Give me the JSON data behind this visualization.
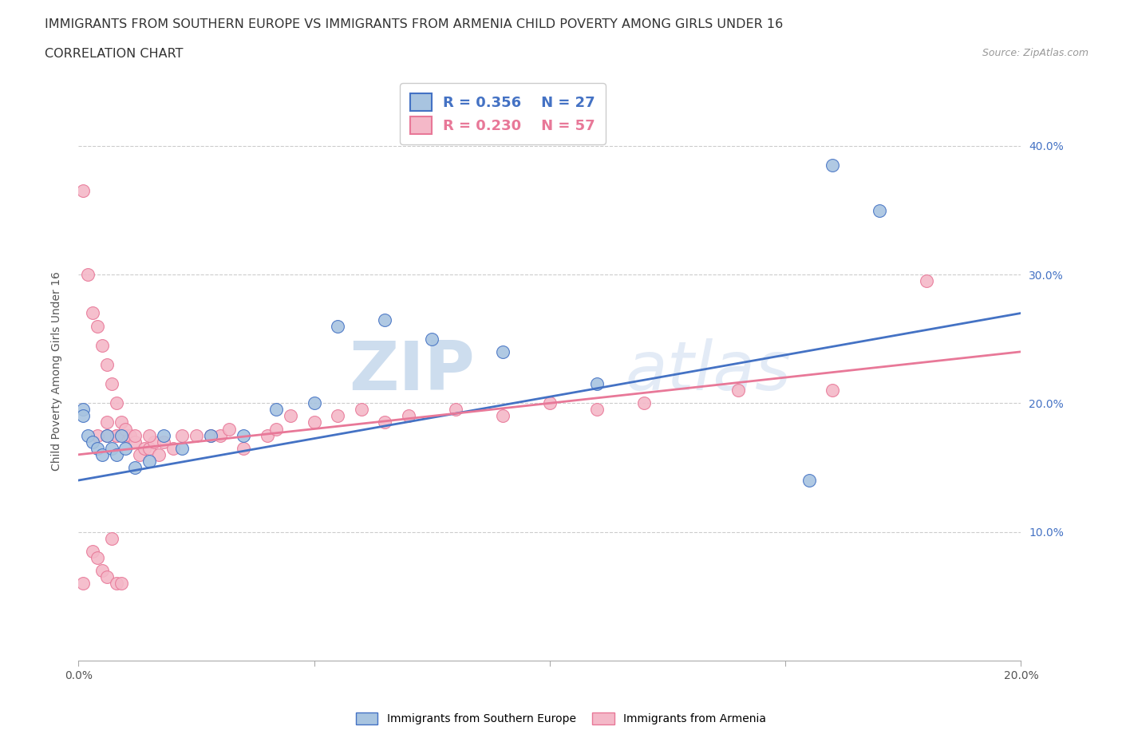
{
  "title_line1": "IMMIGRANTS FROM SOUTHERN EUROPE VS IMMIGRANTS FROM ARMENIA CHILD POVERTY AMONG GIRLS UNDER 16",
  "title_line2": "CORRELATION CHART",
  "source_text": "Source: ZipAtlas.com",
  "ylabel": "Child Poverty Among Girls Under 16",
  "xlim": [
    0.0,
    0.2
  ],
  "ylim": [
    0.0,
    0.45
  ],
  "yticks": [
    0.0,
    0.1,
    0.2,
    0.3,
    0.4
  ],
  "ytick_labels_left": [
    "",
    "",
    "",
    "",
    ""
  ],
  "ytick_labels_right": [
    "",
    "10.0%",
    "20.0%",
    "30.0%",
    "40.0%"
  ],
  "xticks": [
    0.0,
    0.05,
    0.1,
    0.15,
    0.2
  ],
  "xtick_labels": [
    "0.0%",
    "",
    "",
    "",
    "20.0%"
  ],
  "blue_color": "#a8c4e0",
  "blue_line_color": "#4472c4",
  "pink_color": "#f4b8c8",
  "pink_line_color": "#e87898",
  "right_axis_color": "#4472c4",
  "R_blue": "0.356",
  "N_blue": "27",
  "R_pink": "0.230",
  "N_pink": "57",
  "blue_scatter_x": [
    0.001,
    0.001,
    0.002,
    0.003,
    0.004,
    0.005,
    0.006,
    0.007,
    0.008,
    0.009,
    0.01,
    0.012,
    0.015,
    0.018,
    0.022,
    0.028,
    0.035,
    0.042,
    0.05,
    0.055,
    0.065,
    0.075,
    0.09,
    0.11,
    0.155,
    0.16,
    0.17
  ],
  "blue_scatter_y": [
    0.195,
    0.19,
    0.175,
    0.17,
    0.165,
    0.16,
    0.175,
    0.165,
    0.16,
    0.175,
    0.165,
    0.15,
    0.155,
    0.175,
    0.165,
    0.175,
    0.175,
    0.195,
    0.2,
    0.26,
    0.265,
    0.25,
    0.24,
    0.215,
    0.14,
    0.385,
    0.35
  ],
  "pink_scatter_x": [
    0.001,
    0.001,
    0.002,
    0.003,
    0.003,
    0.004,
    0.004,
    0.005,
    0.005,
    0.006,
    0.006,
    0.006,
    0.007,
    0.007,
    0.008,
    0.008,
    0.008,
    0.009,
    0.009,
    0.01,
    0.011,
    0.012,
    0.013,
    0.014,
    0.015,
    0.016,
    0.017,
    0.018,
    0.02,
    0.022,
    0.025,
    0.028,
    0.03,
    0.032,
    0.035,
    0.04,
    0.042,
    0.045,
    0.05,
    0.055,
    0.06,
    0.065,
    0.07,
    0.08,
    0.09,
    0.1,
    0.11,
    0.12,
    0.14,
    0.16,
    0.18,
    0.004,
    0.006,
    0.008,
    0.01,
    0.012,
    0.015
  ],
  "pink_scatter_y": [
    0.365,
    0.06,
    0.3,
    0.27,
    0.085,
    0.26,
    0.08,
    0.245,
    0.07,
    0.23,
    0.175,
    0.065,
    0.215,
    0.095,
    0.2,
    0.175,
    0.06,
    0.185,
    0.06,
    0.175,
    0.175,
    0.17,
    0.16,
    0.165,
    0.165,
    0.17,
    0.16,
    0.17,
    0.165,
    0.175,
    0.175,
    0.175,
    0.175,
    0.18,
    0.165,
    0.175,
    0.18,
    0.19,
    0.185,
    0.19,
    0.195,
    0.185,
    0.19,
    0.195,
    0.19,
    0.2,
    0.195,
    0.2,
    0.21,
    0.21,
    0.295,
    0.175,
    0.185,
    0.175,
    0.18,
    0.175,
    0.175
  ],
  "watermark_zip": "ZIP",
  "watermark_atlas": "atlas",
  "background_color": "#ffffff",
  "grid_color": "#cccccc",
  "grid_linestyle": "--"
}
